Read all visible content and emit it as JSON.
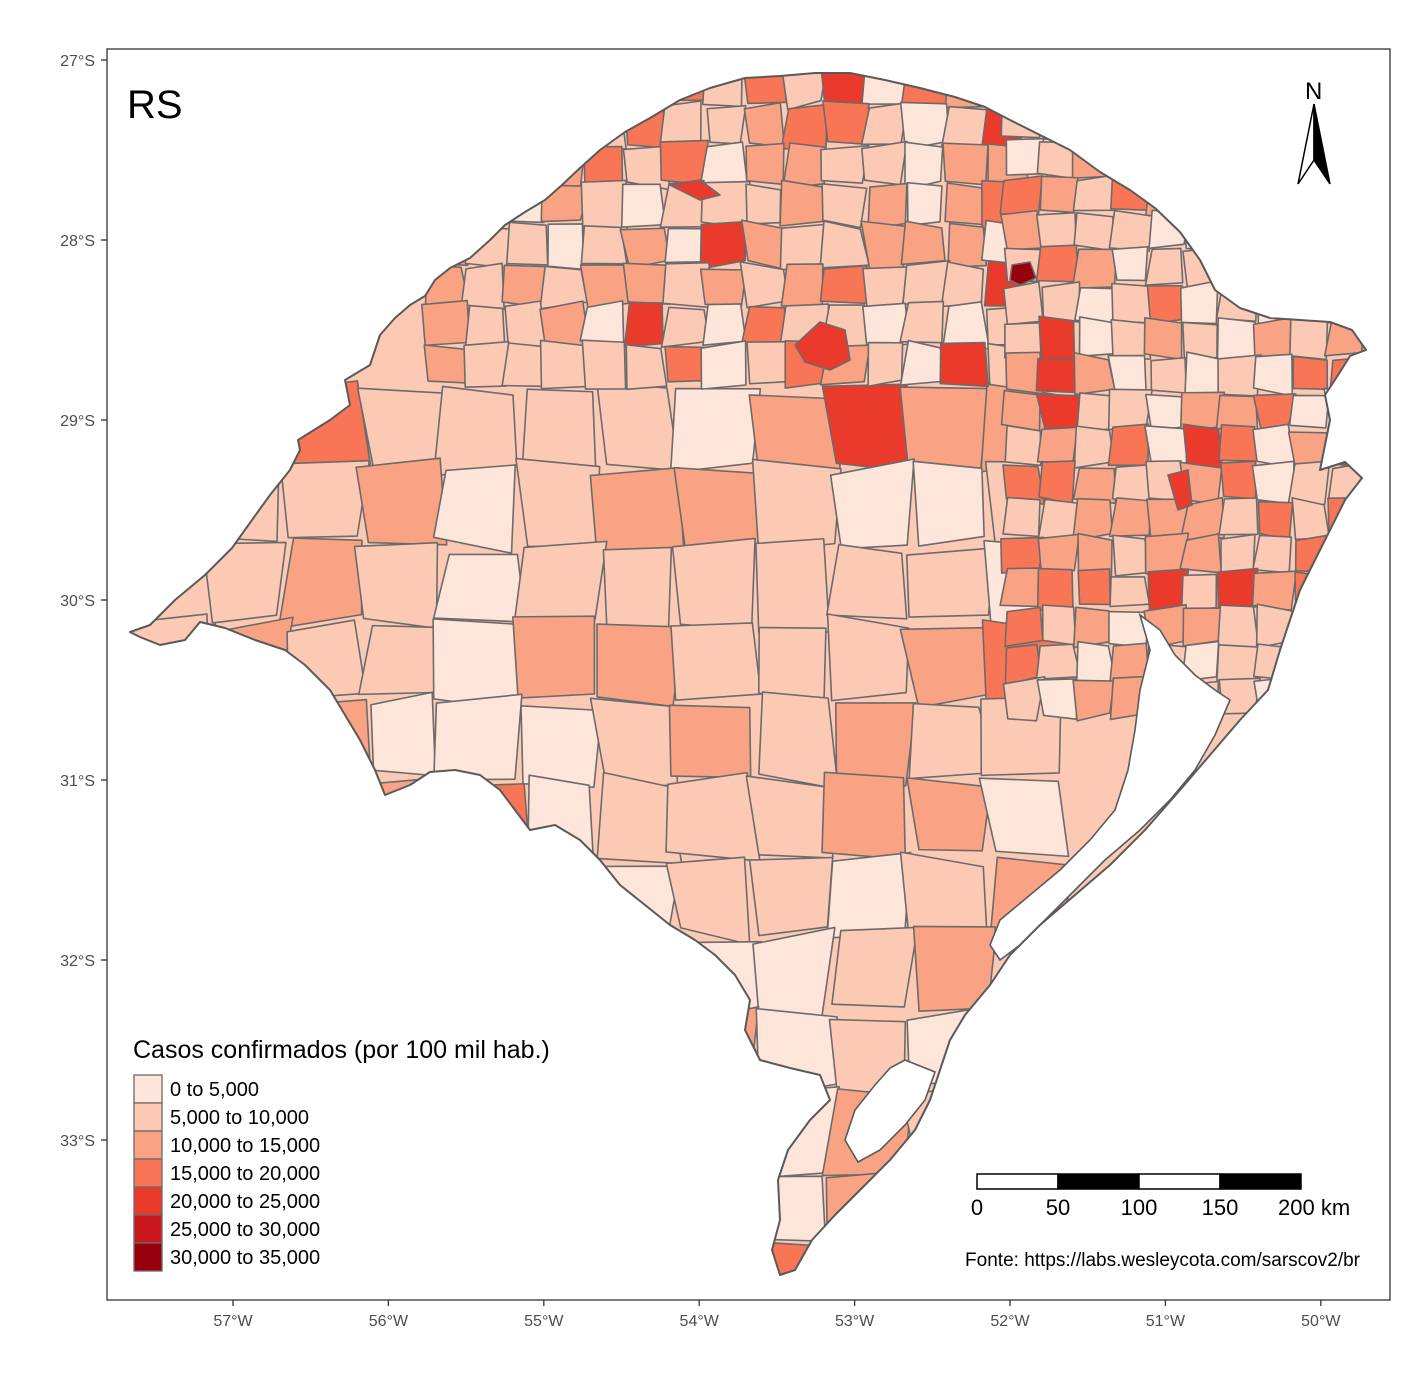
{
  "map": {
    "panel_title": "RS",
    "source": "Fonte: https://labs.wesleycota.com/sarscov2/br",
    "north_label": "N",
    "x_ticks": [
      "57°W",
      "56°W",
      "55°W",
      "54°W",
      "53°W",
      "52°W",
      "51°W",
      "50°W"
    ],
    "y_ticks": [
      "27°S",
      "28°S",
      "29°S",
      "30°S",
      "31°S",
      "32°S",
      "33°S"
    ],
    "x_tick_lon": [
      -57,
      -56,
      -55,
      -54,
      -53,
      -52,
      -51,
      -50
    ],
    "y_tick_lat": [
      -27,
      -28,
      -29,
      -30,
      -31,
      -32,
      -33
    ],
    "legend": {
      "title": "Casos confirmados (por 100 mil hab.)",
      "classes": [
        {
          "label": "0 to 5,000",
          "color": "#fee5d9"
        },
        {
          "label": "5,000 to 10,000",
          "color": "#fcc9b4"
        },
        {
          "label": "10,000 to 15,000",
          "color": "#f9a384"
        },
        {
          "label": "15,000 to 20,000",
          "color": "#f87555"
        },
        {
          "label": "20,000 to 25,000",
          "color": "#ea3a2b"
        },
        {
          "label": "25,000 to 30,000",
          "color": "#cb181d"
        },
        {
          "label": "30,000 to 35,000",
          "color": "#99000d"
        }
      ]
    },
    "scale_bar": {
      "labels": [
        "0",
        "50",
        "100",
        "150",
        "200 km"
      ]
    }
  }
}
